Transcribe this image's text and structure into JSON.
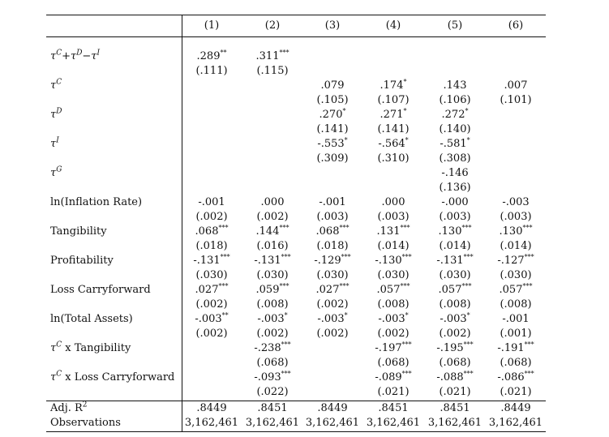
{
  "columns": [
    "(1)",
    "(2)",
    "(3)",
    "(4)",
    "(5)",
    "(6)"
  ],
  "rows": [
    {
      "id": "tau_combo",
      "label_parts": [
        "τ",
        "C",
        "+τ",
        "D",
        "−τ",
        "I"
      ],
      "coef": [
        ".289**",
        ".311***",
        "",
        "",
        "",
        ""
      ],
      "se": [
        "(.111)",
        "(.115)",
        "",
        "",
        "",
        ""
      ]
    },
    {
      "id": "tau_c",
      "label_parts": [
        "τ",
        "C"
      ],
      "coef": [
        "",
        "",
        ".079",
        ".174*",
        ".143",
        ".007"
      ],
      "se": [
        "",
        "",
        "(.105)",
        "(.107)",
        "(.106)",
        "(.101)"
      ]
    },
    {
      "id": "tau_d",
      "label_parts": [
        "τ",
        "D"
      ],
      "coef": [
        "",
        "",
        ".270*",
        ".271*",
        ".272*",
        ""
      ],
      "se": [
        "",
        "",
        "(.141)",
        "(.141)",
        "(.140)",
        ""
      ]
    },
    {
      "id": "tau_i",
      "label_parts": [
        "τ",
        "I"
      ],
      "coef": [
        "",
        "",
        "-.553*",
        "-.564*",
        "-.581*",
        ""
      ],
      "se": [
        "",
        "",
        "(.309)",
        "(.310)",
        "(.308)",
        ""
      ]
    },
    {
      "id": "tau_g",
      "label_parts": [
        "τ",
        "G"
      ],
      "coef": [
        "",
        "",
        "",
        "",
        "-.146",
        ""
      ],
      "se": [
        "",
        "",
        "",
        "",
        "(.136)",
        ""
      ]
    },
    {
      "id": "inflation",
      "label": "ln(Inflation Rate)",
      "coef": [
        "-.001",
        ".000",
        "-.001",
        ".000",
        "-.000",
        "-.003"
      ],
      "se": [
        "(.002)",
        "(.002)",
        "(.003)",
        "(.003)",
        "(.003)",
        "(.003)"
      ]
    },
    {
      "id": "tangibility",
      "label": "Tangibility",
      "coef": [
        ".068***",
        ".144***",
        ".068***",
        ".131***",
        ".130***",
        ".130***"
      ],
      "se": [
        "(.018)",
        "(.016)",
        "(.018)",
        "(.014)",
        "(.014)",
        "(.014)"
      ]
    },
    {
      "id": "profitability",
      "label": "Profitability",
      "coef": [
        "-.131***",
        "-.131***",
        "-.129***",
        "-.130***",
        "-.131***",
        "-.127***"
      ],
      "se": [
        "(.030)",
        "(.030)",
        "(.030)",
        "(.030)",
        "(.030)",
        "(.030)"
      ]
    },
    {
      "id": "loss_cf",
      "label": "Loss Carryforward",
      "coef": [
        ".027***",
        ".059***",
        ".027***",
        ".057***",
        ".057***",
        ".057***"
      ],
      "se": [
        "(.002)",
        "(.008)",
        "(.002)",
        "(.008)",
        "(.008)",
        "(.008)"
      ]
    },
    {
      "id": "total_assets",
      "label": "ln(Total Assets)",
      "coef": [
        "-.003**",
        "-.003*",
        "-.003*",
        "-.003*",
        "-.003*",
        "-.001"
      ],
      "se": [
        "(.002)",
        "(.002)",
        "(.002)",
        "(.002)",
        "(.002)",
        "(.001)"
      ]
    },
    {
      "id": "tauc_tang",
      "label_parts": [
        "τ",
        "C",
        " x Tangibility"
      ],
      "coef": [
        "",
        "-.238***",
        "",
        "-.197***",
        "-.195***",
        "-.191***"
      ],
      "se": [
        "",
        "(.068)",
        "",
        "(.068)",
        "(.068)",
        "(.068)"
      ]
    },
    {
      "id": "tauc_loss",
      "label_parts": [
        "τ",
        "C",
        " x Loss Carryforward"
      ],
      "coef": [
        "",
        "-.093***",
        "",
        "-.089***",
        "-.088***",
        "-.086***"
      ],
      "se": [
        "",
        "(.022)",
        "",
        "(.021)",
        "(.021)",
        "(.021)"
      ]
    }
  ],
  "footer": [
    {
      "id": "adj_r2",
      "label_parts": [
        "Adj. R",
        "2"
      ],
      "values": [
        ".8449",
        ".8451",
        ".8449",
        ".8451",
        ".8451",
        ".8449"
      ]
    },
    {
      "id": "obs",
      "label": "Observations",
      "values": [
        "3,162,461",
        "3,162,461",
        "3,162,461",
        "3,162,461",
        "3,162,461",
        "3,162,461"
      ]
    }
  ]
}
